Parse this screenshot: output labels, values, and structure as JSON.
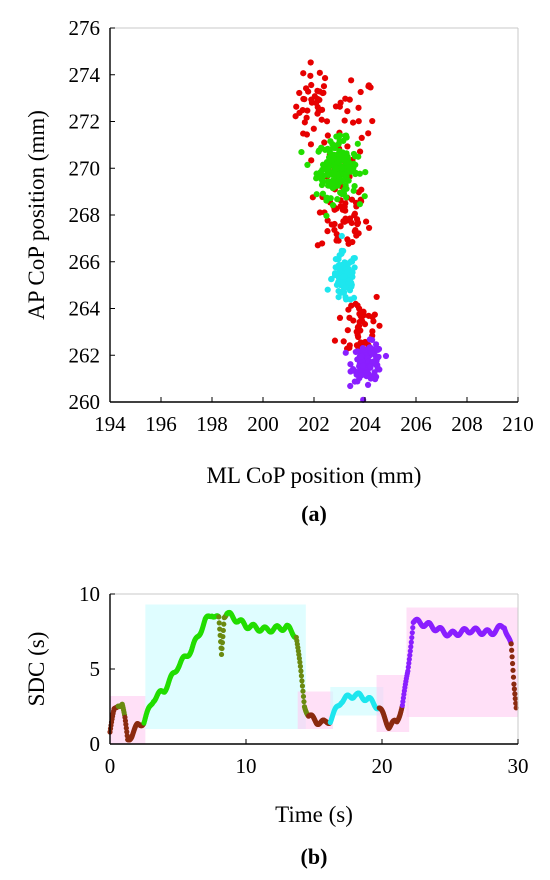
{
  "colors": {
    "red": "#e60000",
    "green": "#22dd00",
    "cyan": "#1ee6ee",
    "purple": "#8a1fff",
    "brown": "#8b2a10",
    "olive": "#6a8a10"
  },
  "chart_data": [
    {
      "type": "scatter",
      "panel_label": "(a)",
      "xlabel": "ML CoP position (mm)",
      "ylabel": "AP CoP position (mm)",
      "xlim": [
        194,
        210
      ],
      "ylim": [
        260,
        276
      ],
      "xticks": [
        194,
        196,
        198,
        200,
        202,
        204,
        206,
        208,
        210
      ],
      "yticks": [
        260,
        262,
        264,
        266,
        268,
        270,
        272,
        274,
        276
      ],
      "grid": false,
      "clusters": [
        {
          "color": "red",
          "cx": 202.0,
          "cy": 272.7,
          "sx": 0.35,
          "sy": 0.9,
          "n": 40
        },
        {
          "color": "red",
          "cx": 203.4,
          "cy": 271.6,
          "sx": 0.5,
          "sy": 1.3,
          "n": 30
        },
        {
          "color": "red",
          "cx": 203.1,
          "cy": 267.9,
          "sx": 0.5,
          "sy": 0.8,
          "n": 60
        },
        {
          "color": "red",
          "cx": 203.8,
          "cy": 263.3,
          "sx": 0.45,
          "sy": 0.8,
          "n": 45
        },
        {
          "color": "green",
          "cx": 202.9,
          "cy": 270.0,
          "sx": 0.4,
          "sy": 0.6,
          "n": 170
        },
        {
          "color": "cyan",
          "cx": 203.2,
          "cy": 265.3,
          "sx": 0.25,
          "sy": 0.55,
          "n": 80
        },
        {
          "color": "purple",
          "cx": 204.1,
          "cy": 261.7,
          "sx": 0.3,
          "sy": 0.4,
          "n": 100
        }
      ]
    },
    {
      "type": "scatter",
      "panel_label": "(b)",
      "xlabel": "Time (s)",
      "ylabel": "SDC (s)",
      "xlim": [
        0,
        30
      ],
      "ylim": [
        0,
        10
      ],
      "xticks": [
        0,
        10,
        20,
        30
      ],
      "yticks": [
        0,
        5,
        10
      ],
      "grid": false,
      "segments": [
        {
          "color": "brown",
          "x": [
            0,
            0.3,
            0.6
          ],
          "y": [
            0.8,
            2.2,
            2.7
          ]
        },
        {
          "color": "olive",
          "x": [
            0.6,
            0.9,
            1.1
          ],
          "y": [
            2.7,
            2.6,
            1.6
          ]
        },
        {
          "color": "brown",
          "x": [
            1.1,
            1.3,
            1.6,
            2.0,
            2.5
          ],
          "y": [
            1.6,
            0.3,
            0.6,
            1.2,
            1.5
          ]
        },
        {
          "color": "green",
          "x": [
            2.5,
            3.2,
            4.0,
            5.0,
            6.0,
            7.0,
            7.5,
            8.0
          ],
          "y": [
            1.5,
            3.0,
            3.6,
            5.2,
            6.3,
            8.2,
            8.7,
            8.3
          ]
        },
        {
          "color": "olive",
          "x": [
            8.0,
            8.2,
            8.4,
            8.6
          ],
          "y": [
            8.3,
            6.0,
            8.6,
            8.7
          ]
        },
        {
          "color": "green",
          "x": [
            8.6,
            10.0,
            11.5,
            13.0,
            13.7
          ],
          "y": [
            8.7,
            7.9,
            7.6,
            7.8,
            7.2
          ]
        },
        {
          "color": "olive",
          "x": [
            13.7,
            14.0,
            14.3,
            14.6
          ],
          "y": [
            7.2,
            5.0,
            2.6,
            1.9
          ]
        },
        {
          "color": "brown",
          "x": [
            14.6,
            15.2,
            15.8,
            16.2
          ],
          "y": [
            1.9,
            1.5,
            1.4,
            1.6
          ]
        },
        {
          "color": "cyan",
          "x": [
            16.2,
            17.0,
            18.0,
            19.0,
            19.8
          ],
          "y": [
            1.6,
            2.9,
            3.3,
            3.0,
            2.4
          ]
        },
        {
          "color": "brown",
          "x": [
            19.8,
            20.5,
            21.1,
            21.5
          ],
          "y": [
            2.4,
            1.2,
            1.5,
            2.6
          ]
        },
        {
          "color": "purple",
          "x": [
            21.5,
            21.9,
            22.3,
            23.5,
            25.0,
            26.5,
            28.0,
            29.0,
            29.5
          ],
          "y": [
            2.6,
            4.8,
            8.2,
            7.9,
            7.3,
            7.6,
            7.4,
            7.9,
            6.5
          ]
        },
        {
          "color": "brown",
          "x": [
            29.5,
            29.7,
            29.9
          ],
          "y": [
            6.5,
            4.0,
            2.3
          ]
        }
      ],
      "highlight_bands": [
        {
          "color": "#ffccf2",
          "x": [
            0,
            2.6
          ],
          "y": [
            0,
            3.2
          ]
        },
        {
          "color": "#c9fbff",
          "x": [
            2.6,
            14.4
          ],
          "y": [
            1.0,
            9.3
          ]
        },
        {
          "color": "#ffccf2",
          "x": [
            13.8,
            16.4
          ],
          "y": [
            1.0,
            3.5
          ]
        },
        {
          "color": "#c9fbff",
          "x": [
            16.2,
            20.1
          ],
          "y": [
            1.9,
            3.8
          ]
        },
        {
          "color": "#ffccf2",
          "x": [
            19.6,
            22.0
          ],
          "y": [
            0.8,
            4.6
          ]
        },
        {
          "color": "#ffccf2",
          "x": [
            21.8,
            30.0
          ],
          "y": [
            1.8,
            9.1
          ]
        }
      ]
    }
  ]
}
